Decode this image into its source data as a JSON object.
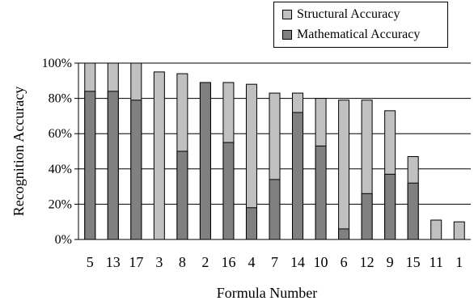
{
  "chart_data": {
    "type": "bar",
    "stacked": false,
    "overlapping": true,
    "categories": [
      "5",
      "13",
      "17",
      "3",
      "8",
      "2",
      "16",
      "4",
      "7",
      "14",
      "10",
      "6",
      "12",
      "9",
      "15",
      "11",
      "1"
    ],
    "series": [
      {
        "name": "Structural Accuracy",
        "color": "#c0c0c0",
        "values": [
          100,
          100,
          100,
          95,
          94,
          89,
          89,
          88,
          83,
          83,
          80,
          79,
          79,
          73,
          47,
          11,
          10
        ]
      },
      {
        "name": "Mathematical Accuracy",
        "color": "#808080",
        "values": [
          84,
          84,
          79,
          0,
          50,
          89,
          55,
          18,
          34,
          72,
          53,
          6,
          26,
          37,
          32,
          0,
          0
        ]
      }
    ],
    "yticks": [
      "0%",
      "20%",
      "40%",
      "60%",
      "80%",
      "100%"
    ],
    "ylim": [
      0,
      100
    ],
    "xlabel": "Formula Number",
    "ylabel": "Recognition Accuracy",
    "grid": true,
    "legend_position": "top-right"
  }
}
